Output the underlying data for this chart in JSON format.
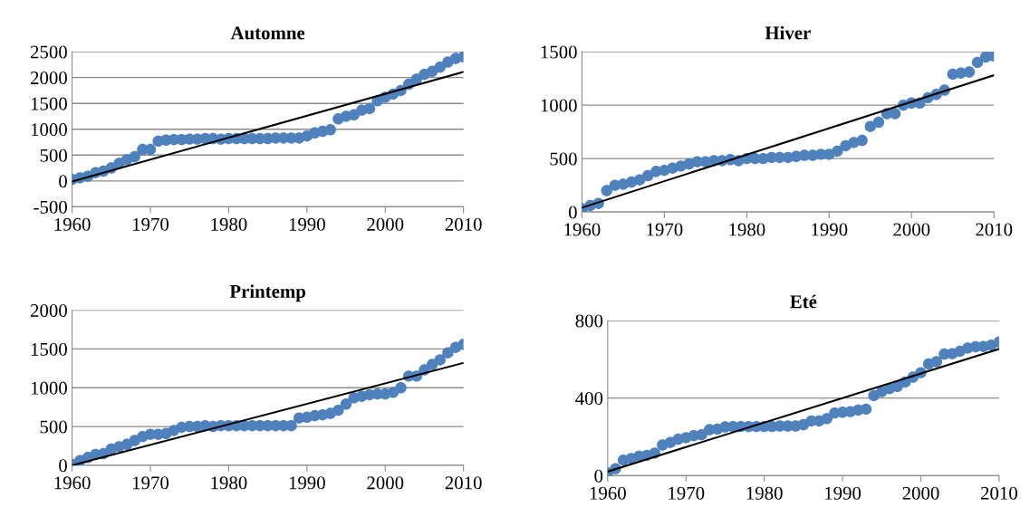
{
  "chart_data": [
    {
      "type": "scatter",
      "title": "Automne",
      "xlim": [
        1960,
        2010
      ],
      "xticks": [
        1960,
        1970,
        1980,
        1990,
        2000,
        2010
      ],
      "ylim": [
        -500,
        2500
      ],
      "yticks": [
        -500,
        0,
        500,
        1000,
        1500,
        2000,
        2500
      ],
      "grid": "y",
      "series": [
        {
          "color": "#4f81bd",
          "marker": "circle",
          "x": [
            1960,
            1961,
            1962,
            1963,
            1964,
            1965,
            1966,
            1967,
            1968,
            1969,
            1970,
            1971,
            1972,
            1973,
            1974,
            1975,
            1976,
            1977,
            1978,
            1979,
            1980,
            1981,
            1982,
            1983,
            1984,
            1985,
            1986,
            1987,
            1988,
            1989,
            1990,
            1991,
            1992,
            1993,
            1994,
            1995,
            1996,
            1997,
            1998,
            1999,
            2000,
            2001,
            2002,
            2003,
            2004,
            2005,
            2006,
            2007,
            2008,
            2009,
            2010
          ],
          "values": [
            30,
            60,
            90,
            160,
            190,
            250,
            340,
            410,
            470,
            610,
            610,
            770,
            790,
            800,
            800,
            810,
            810,
            820,
            820,
            810,
            820,
            820,
            820,
            820,
            820,
            820,
            830,
            830,
            830,
            830,
            870,
            930,
            960,
            990,
            1200,
            1250,
            1280,
            1370,
            1400,
            1550,
            1620,
            1680,
            1750,
            1870,
            1970,
            2060,
            2120,
            2200,
            2300,
            2370,
            2400
          ]
        },
        {
          "type": "line",
          "marker": "none",
          "color": "#000000",
          "x": [
            1960,
            2010
          ],
          "values": [
            -10,
            2110
          ]
        }
      ]
    },
    {
      "type": "scatter",
      "title": "Hiver",
      "xlim": [
        1960,
        2010
      ],
      "xticks": [
        1960,
        1970,
        1980,
        1990,
        2000,
        2010
      ],
      "ylim": [
        0,
        1500
      ],
      "yticks": [
        0,
        500,
        1000,
        1500
      ],
      "grid": "y",
      "series": [
        {
          "color": "#4f81bd",
          "marker": "circle",
          "x": [
            1960,
            1961,
            1962,
            1963,
            1964,
            1965,
            1966,
            1967,
            1968,
            1969,
            1970,
            1971,
            1972,
            1973,
            1974,
            1975,
            1976,
            1977,
            1978,
            1979,
            1980,
            1981,
            1982,
            1983,
            1984,
            1985,
            1986,
            1987,
            1988,
            1989,
            1990,
            1991,
            1992,
            1993,
            1994,
            1995,
            1996,
            1997,
            1998,
            1999,
            2000,
            2001,
            2002,
            2003,
            2004,
            2005,
            2006,
            2007,
            2008,
            2009,
            2010
          ],
          "values": [
            30,
            60,
            80,
            200,
            250,
            260,
            280,
            300,
            340,
            380,
            390,
            410,
            430,
            450,
            470,
            470,
            480,
            480,
            490,
            480,
            500,
            500,
            500,
            510,
            510,
            510,
            520,
            530,
            530,
            540,
            540,
            570,
            620,
            650,
            670,
            800,
            840,
            920,
            920,
            1000,
            1020,
            1020,
            1070,
            1100,
            1140,
            1290,
            1300,
            1310,
            1400,
            1450,
            1460
          ]
        },
        {
          "type": "line",
          "marker": "none",
          "color": "#000000",
          "x": [
            1960,
            2010
          ],
          "values": [
            40,
            1280
          ]
        }
      ]
    },
    {
      "type": "scatter",
      "title": "Printemp",
      "xlim": [
        1960,
        2010
      ],
      "xticks": [
        1960,
        1970,
        1980,
        1990,
        2000,
        2010
      ],
      "ylim": [
        0,
        2000
      ],
      "yticks": [
        0,
        500,
        1000,
        1500,
        2000
      ],
      "grid": "y",
      "series": [
        {
          "color": "#4f81bd",
          "marker": "circle",
          "x": [
            1960,
            1961,
            1962,
            1963,
            1964,
            1965,
            1966,
            1967,
            1968,
            1969,
            1970,
            1971,
            1972,
            1973,
            1974,
            1975,
            1976,
            1977,
            1978,
            1979,
            1980,
            1981,
            1982,
            1983,
            1984,
            1985,
            1986,
            1987,
            1988,
            1989,
            1990,
            1991,
            1992,
            1993,
            1994,
            1995,
            1996,
            1997,
            1998,
            1999,
            2000,
            2001,
            2002,
            2003,
            2004,
            2005,
            2006,
            2007,
            2008,
            2009,
            2010
          ],
          "values": [
            10,
            60,
            100,
            140,
            150,
            210,
            240,
            270,
            320,
            370,
            400,
            400,
            410,
            450,
            490,
            500,
            500,
            510,
            500,
            510,
            510,
            510,
            510,
            510,
            510,
            510,
            510,
            510,
            510,
            610,
            620,
            640,
            650,
            670,
            710,
            790,
            870,
            890,
            910,
            920,
            920,
            940,
            1000,
            1150,
            1150,
            1230,
            1300,
            1360,
            1450,
            1520,
            1560
          ]
        },
        {
          "type": "line",
          "marker": "none",
          "color": "#000000",
          "x": [
            1960,
            2010
          ],
          "values": [
            0,
            1320
          ]
        }
      ]
    },
    {
      "type": "scatter",
      "title": "Eté",
      "xlim": [
        1960,
        2010
      ],
      "xticks": [
        1960,
        1970,
        1980,
        1990,
        2000,
        2010
      ],
      "ylim": [
        0,
        800
      ],
      "yticks": [
        0,
        400,
        800
      ],
      "grid": "y",
      "series": [
        {
          "color": "#4f81bd",
          "marker": "circle",
          "x": [
            1960,
            1961,
            1962,
            1963,
            1964,
            1965,
            1966,
            1967,
            1968,
            1969,
            1970,
            1971,
            1972,
            1973,
            1974,
            1975,
            1976,
            1977,
            1978,
            1979,
            1980,
            1981,
            1982,
            1983,
            1984,
            1985,
            1986,
            1987,
            1988,
            1989,
            1990,
            1991,
            1992,
            1993,
            1994,
            1995,
            1996,
            1997,
            1998,
            1999,
            2000,
            2001,
            2002,
            2003,
            2004,
            2005,
            2006,
            2007,
            2008,
            2009,
            2010
          ],
          "values": [
            15,
            36,
            80,
            88,
            100,
            105,
            116,
            158,
            171,
            188,
            196,
            206,
            211,
            237,
            240,
            251,
            253,
            253,
            253,
            253,
            253,
            253,
            256,
            256,
            256,
            263,
            282,
            282,
            294,
            323,
            327,
            330,
            338,
            343,
            413,
            433,
            449,
            460,
            483,
            508,
            531,
            576,
            588,
            627,
            629,
            642,
            658,
            665,
            666,
            673,
            689
          ]
        },
        {
          "type": "line",
          "marker": "none",
          "color": "#000000",
          "x": [
            1960,
            2010
          ],
          "values": [
            21,
            653
          ]
        }
      ]
    }
  ]
}
